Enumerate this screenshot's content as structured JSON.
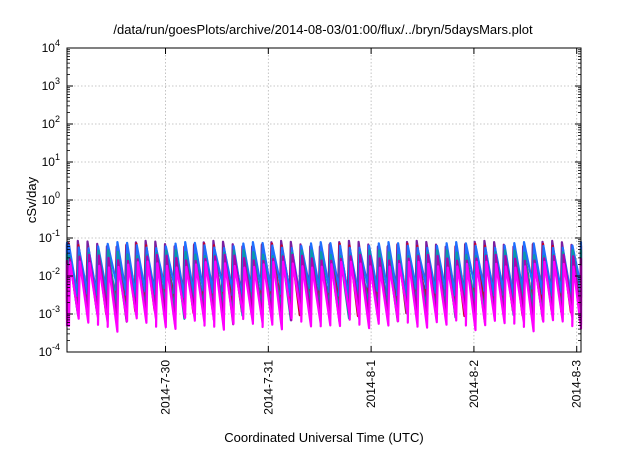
{
  "chart_data": {
    "type": "line",
    "title": "/data/run/goesPlots/archive/2014-08-03/01:00/flux/../bryn/5daysMars.plot",
    "xlabel": "Coordinated Universal Time (UTC)",
    "ylabel": "cSv/day",
    "y_scale": "log",
    "ylim": [
      0.0001,
      10000
    ],
    "y_ticks": [
      {
        "value": 0.0001,
        "base": "10",
        "exp": "-4"
      },
      {
        "value": 0.001,
        "base": "10",
        "exp": "-3"
      },
      {
        "value": 0.01,
        "base": "10",
        "exp": "-2"
      },
      {
        "value": 0.1,
        "base": "10",
        "exp": "-1"
      },
      {
        "value": 1,
        "base": "10",
        "exp": "0"
      },
      {
        "value": 10,
        "base": "10",
        "exp": "1"
      },
      {
        "value": 100,
        "base": "10",
        "exp": "2"
      },
      {
        "value": 1000,
        "base": "10",
        "exp": "3"
      },
      {
        "value": 10000,
        "base": "10",
        "exp": "4"
      }
    ],
    "xlim": [
      "2014-07-29T01:00",
      "2014-08-03T01:00"
    ],
    "x_ticks": [
      {
        "value": "2014-07-30T00:00",
        "label": "2014-7-30"
      },
      {
        "value": "2014-07-31T00:00",
        "label": "2014-7-31"
      },
      {
        "value": "2014-08-01T00:00",
        "label": "2014-8-1"
      },
      {
        "value": "2014-08-02T00:00",
        "label": "2014-8-2"
      },
      {
        "value": "2014-08-03T00:00",
        "label": "2014-8-3"
      }
    ],
    "grid": true,
    "legend": "none",
    "pattern": {
      "description_free": true,
      "cycle_hours": 2.26,
      "shape": "sawtooth"
    },
    "series": [
      {
        "color": "#7a1fa0",
        "peak": 0.07,
        "trough": 0.0025,
        "phase_hours": 0.0
      },
      {
        "color": "#c8002a",
        "peak": 0.06,
        "trough": 0.0015,
        "phase_hours": 0.12
      },
      {
        "color": "#1f6fff",
        "peak": 0.065,
        "trough": 0.004,
        "phase_hours": 0.2
      },
      {
        "color": "#0a9aa8",
        "peak": 0.04,
        "trough": 0.0012,
        "phase_hours": 0.3
      },
      {
        "color": "#b000b0",
        "peak": 0.03,
        "trough": 0.0009,
        "phase_hours": 0.38
      },
      {
        "color": "#ff00ff",
        "peak": 0.02,
        "trough": 0.0006,
        "phase_hours": 0.46
      }
    ]
  }
}
